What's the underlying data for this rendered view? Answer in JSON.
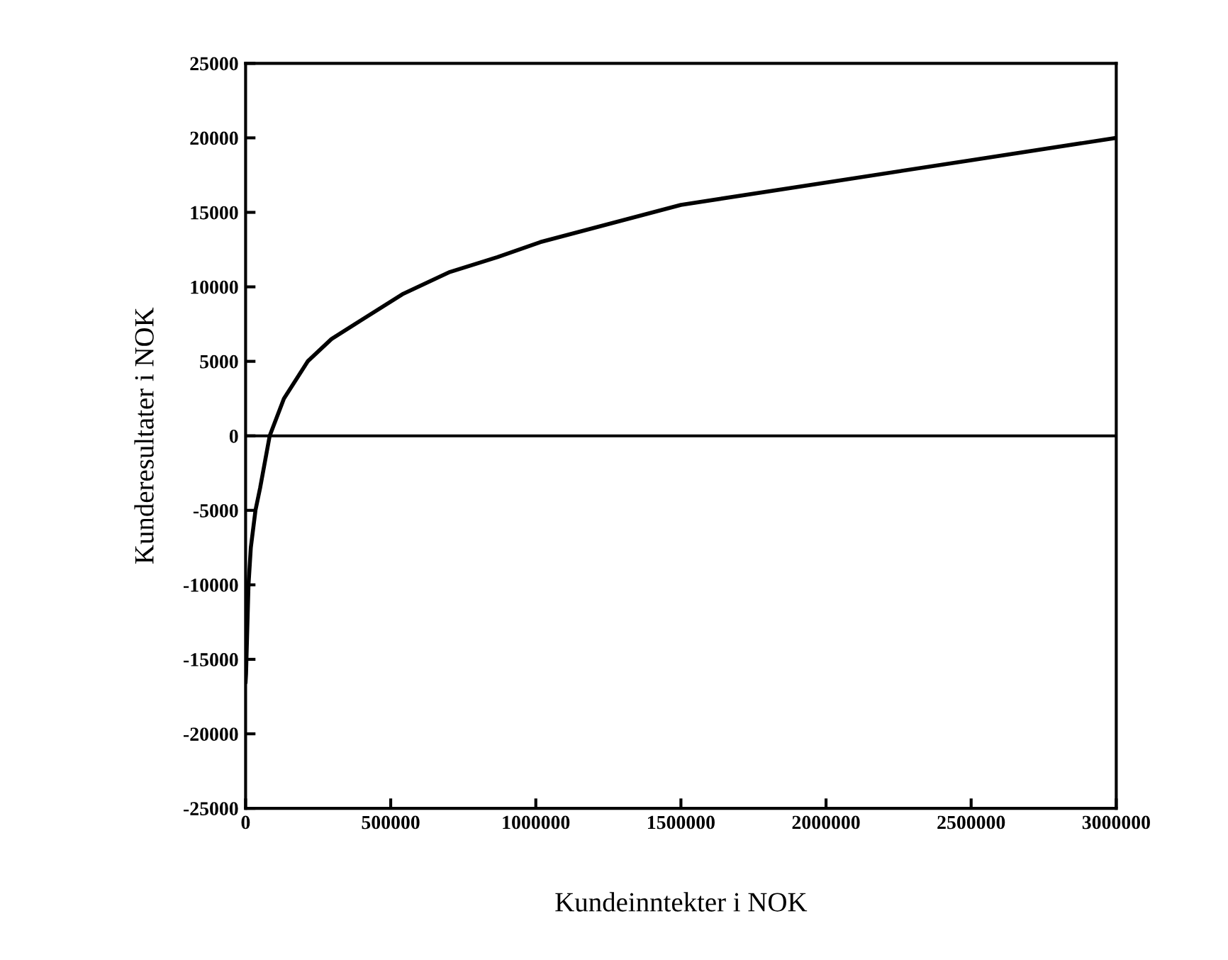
{
  "chart_data": {
    "type": "line",
    "xlabel": "Kundeinntekter i NOK",
    "ylabel": "Kunderesultater i NOK",
    "series": [
      {
        "color": "#000000",
        "x": [
          0,
          1500,
          10000,
          18000,
          34000,
          50000,
          83000,
          132000,
          214000,
          296000,
          377000,
          540000,
          704000,
          868000,
          1015000,
          1500000,
          2000000,
          2500000,
          3000000
        ],
        "values": [
          -16500,
          -16000,
          -10000,
          -7500,
          -5000,
          -3500,
          0,
          2500,
          5000,
          6500,
          7500,
          9500,
          11000,
          12000,
          13000,
          15500,
          17000,
          18500,
          20000
        ]
      }
    ],
    "xlim": [
      0,
      3000000
    ],
    "xticks": [
      0,
      500000,
      1000000,
      1500000,
      2000000,
      2500000,
      3000000
    ],
    "ylim": [
      -25000,
      25000
    ],
    "yticks": [
      -25000,
      -20000,
      -15000,
      -10000,
      -5000,
      0,
      5000,
      10000,
      15000,
      20000,
      25000
    ],
    "ref_lines": [
      {
        "axis": "y",
        "value": 0,
        "color": "#000000"
      }
    ],
    "grid": false,
    "legend": false,
    "marker": "none",
    "line_style": "solid"
  }
}
